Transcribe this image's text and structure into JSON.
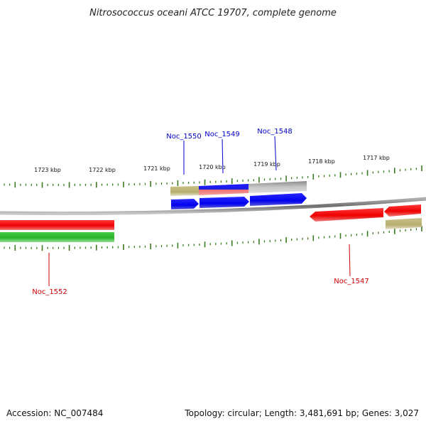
{
  "title": "Nitrosococcus oceani ATCC 19707, complete genome",
  "footer": {
    "accession": "Accession: NC_007484",
    "summary": "Topology: circular; Length: 3,481,691 bp; Genes: 3,027"
  },
  "colors": {
    "ruler_ticks": "#3a7a1e",
    "backbone": "#808080",
    "forward_strand": "#0000ee",
    "reverse_strand": "#ee0000",
    "rna": "#30bb30",
    "other_feature": "#b8b070",
    "pseudo": "#bbbbbb",
    "label_forward": "#0000cc",
    "label_reverse": "#cc0000"
  },
  "ruler": {
    "labels": [
      "1723 kbp",
      "1722 kbp",
      "1721 kbp",
      "1720 kbp",
      "1719 kbp",
      "1718 kbp",
      "1717 kbp"
    ]
  },
  "genes": [
    {
      "name": "Noc_1552",
      "strand": "reverse"
    },
    {
      "name": "Noc_1550",
      "strand": "forward"
    },
    {
      "name": "Noc_1549",
      "strand": "forward"
    },
    {
      "name": "Noc_1548",
      "strand": "forward"
    },
    {
      "name": "Noc_1547",
      "strand": "reverse"
    }
  ]
}
